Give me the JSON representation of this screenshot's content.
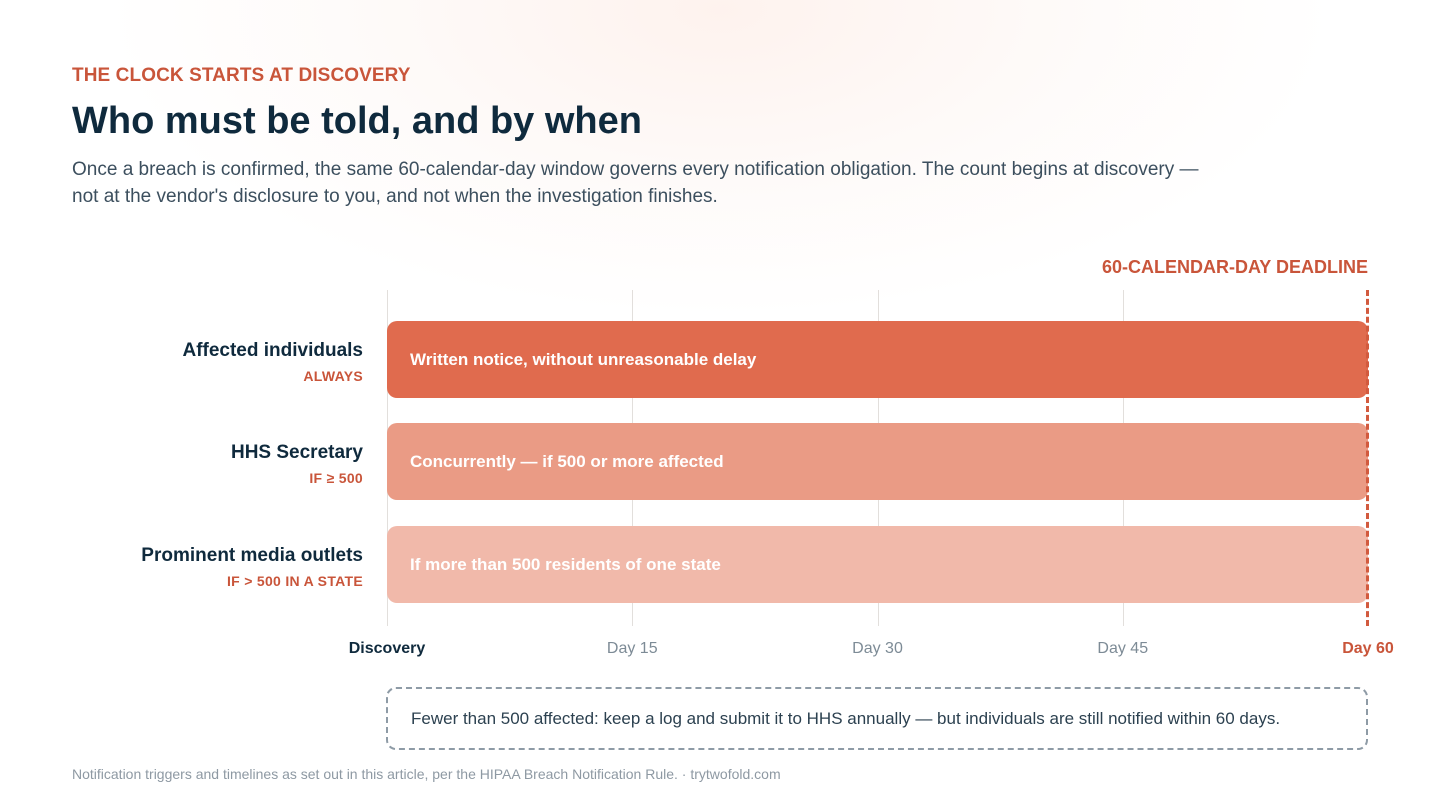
{
  "eyebrow": "THE CLOCK STARTS AT DISCOVERY",
  "title": "Who must be told, and by when",
  "subtitle": "Once a breach is confirmed, the same 60-calendar-day window governs every notification obligation. The count begins at discovery — not at the vendor's disclosure to you, and not when the investigation finishes.",
  "deadline_label": "60-CALENDAR-DAY DEADLINE",
  "callout": "Fewer than 500 affected: keep a log and submit it to HHS annually — but individuals are still notified within 60 days.",
  "footer": "Notification triggers and timelines as set out in this article, per the HIPAA Breach Notification Rule. · trytwofold.com",
  "colors": {
    "accent": "#c9553a",
    "bar_strong": "#e06b4e",
    "bar_medium": "#ea9b85",
    "bar_light": "#f1b9aa",
    "heading": "#0f2a3d"
  },
  "chart_data": {
    "type": "bar",
    "orientation": "horizontal",
    "x_range": [
      0,
      60
    ],
    "x_ticks": [
      {
        "value": 0,
        "label": "Discovery"
      },
      {
        "value": 15,
        "label": "Day 15"
      },
      {
        "value": 30,
        "label": "Day 30"
      },
      {
        "value": 45,
        "label": "Day 45"
      },
      {
        "value": 60,
        "label": "Day 60"
      }
    ],
    "deadline": 60,
    "grid": true,
    "rows": [
      {
        "name": "Affected individuals",
        "condition": "ALWAYS",
        "start": 0,
        "end": 60,
        "text": "Written notice, without unreasonable delay",
        "color": "#e06b4e"
      },
      {
        "name": "HHS Secretary",
        "condition": "IF ≥ 500",
        "start": 0,
        "end": 60,
        "text": "Concurrently — if 500 or more affected",
        "color": "#ea9b85"
      },
      {
        "name": "Prominent media outlets",
        "condition": "IF > 500 IN A STATE",
        "start": 0,
        "end": 60,
        "text": "If more than 500 residents of one state",
        "color": "#f1b9aa"
      }
    ]
  }
}
